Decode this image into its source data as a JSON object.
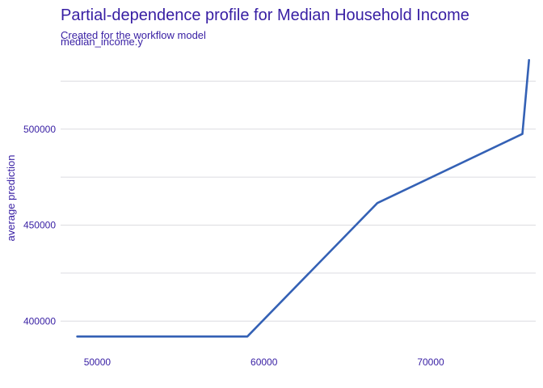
{
  "chart_data": {
    "type": "line",
    "title": "Partial-dependence profile for Median Household Income",
    "subtitle": "Created for the workflow model",
    "panel_label": "median_income.y",
    "xlabel": "",
    "ylabel": "average prediction",
    "xlim": [
      47800,
      76300
    ],
    "ylim": [
      382000,
      542000
    ],
    "x_ticks": [
      50000,
      60000,
      70000
    ],
    "y_ticks": [
      400000,
      450000,
      500000
    ],
    "y_gridlines": [
      400000,
      425000,
      450000,
      475000,
      500000,
      525000
    ],
    "grid": true,
    "legend": "none",
    "series": [
      {
        "color": "#3461b5",
        "x": [
          48800,
          59000,
          66800,
          75500,
          75900
        ],
        "y": [
          392000,
          392000,
          461500,
          497500,
          536000
        ]
      }
    ]
  }
}
